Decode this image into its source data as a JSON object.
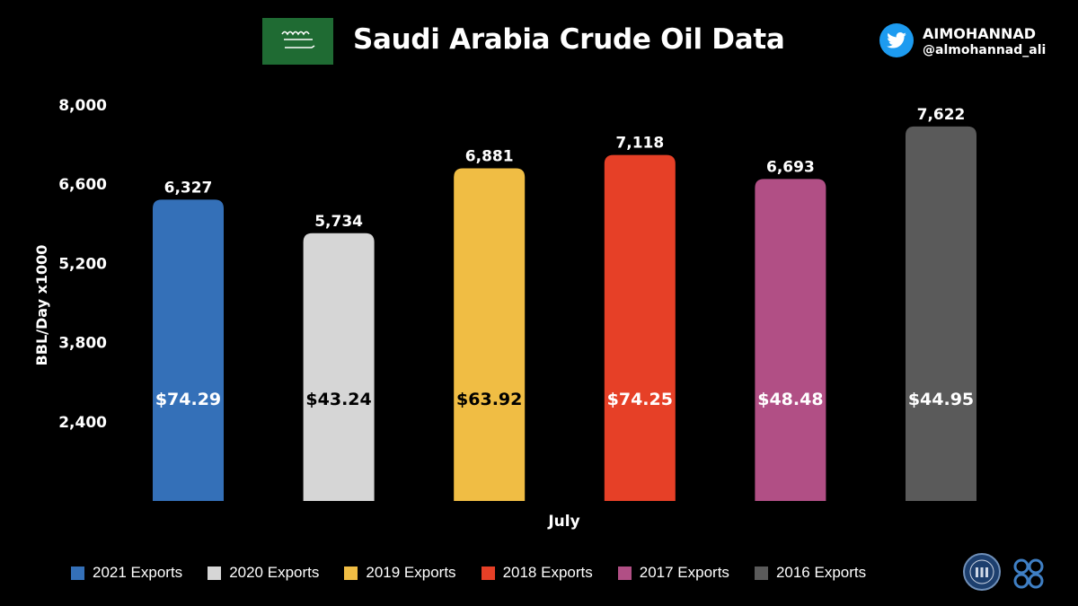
{
  "header": {
    "title": "Saudi Arabia Crude Oil Data",
    "brand_name": "AIMOHANNAD",
    "brand_handle": "@almohannad_ali"
  },
  "colors": {
    "background": "#000000",
    "flag_green": "#1f6b33",
    "twitter_blue": "#1d9bf0"
  },
  "icons": [
    "saudi-flag-icon",
    "twitter-icon",
    "opec-seal-icon",
    "opec-logo-icon"
  ],
  "chart_data": {
    "type": "bar",
    "xlabel": "July",
    "ylabel": "BBL/Day x1000",
    "ylim": [
      1000,
      8000
    ],
    "yticks": [
      2400,
      3800,
      5200,
      6600,
      8000
    ],
    "ytick_labels": [
      "2,400",
      "3,800",
      "5,200",
      "6,600",
      "8,000"
    ],
    "grid": false,
    "legend_position": "bottom",
    "series": [
      {
        "name": "2021 Exports",
        "values": [
          6327
        ],
        "value_label": "6,327",
        "price_label": "$74.29",
        "color": "#3470b8",
        "price_color": "#ffffff"
      },
      {
        "name": "2020 Exports",
        "values": [
          5734
        ],
        "value_label": "5,734",
        "price_label": "$43.24",
        "color": "#d6d6d6",
        "price_color": "#000000"
      },
      {
        "name": "2019 Exports",
        "values": [
          6881
        ],
        "value_label": "6,881",
        "price_label": "$63.92",
        "color": "#f0bd44",
        "price_color": "#000000"
      },
      {
        "name": "2018 Exports",
        "values": [
          7118
        ],
        "value_label": "7,118",
        "price_label": "$74.25",
        "color": "#e64027",
        "price_color": "#ffffff"
      },
      {
        "name": "2017 Exports",
        "values": [
          6693
        ],
        "value_label": "6,693",
        "price_label": "$48.48",
        "color": "#b14f85",
        "price_color": "#ffffff"
      },
      {
        "name": "2016 Exports",
        "values": [
          7622
        ],
        "value_label": "7,622",
        "price_label": "$44.95",
        "color": "#5a5a5a",
        "price_color": "#ffffff"
      }
    ]
  }
}
